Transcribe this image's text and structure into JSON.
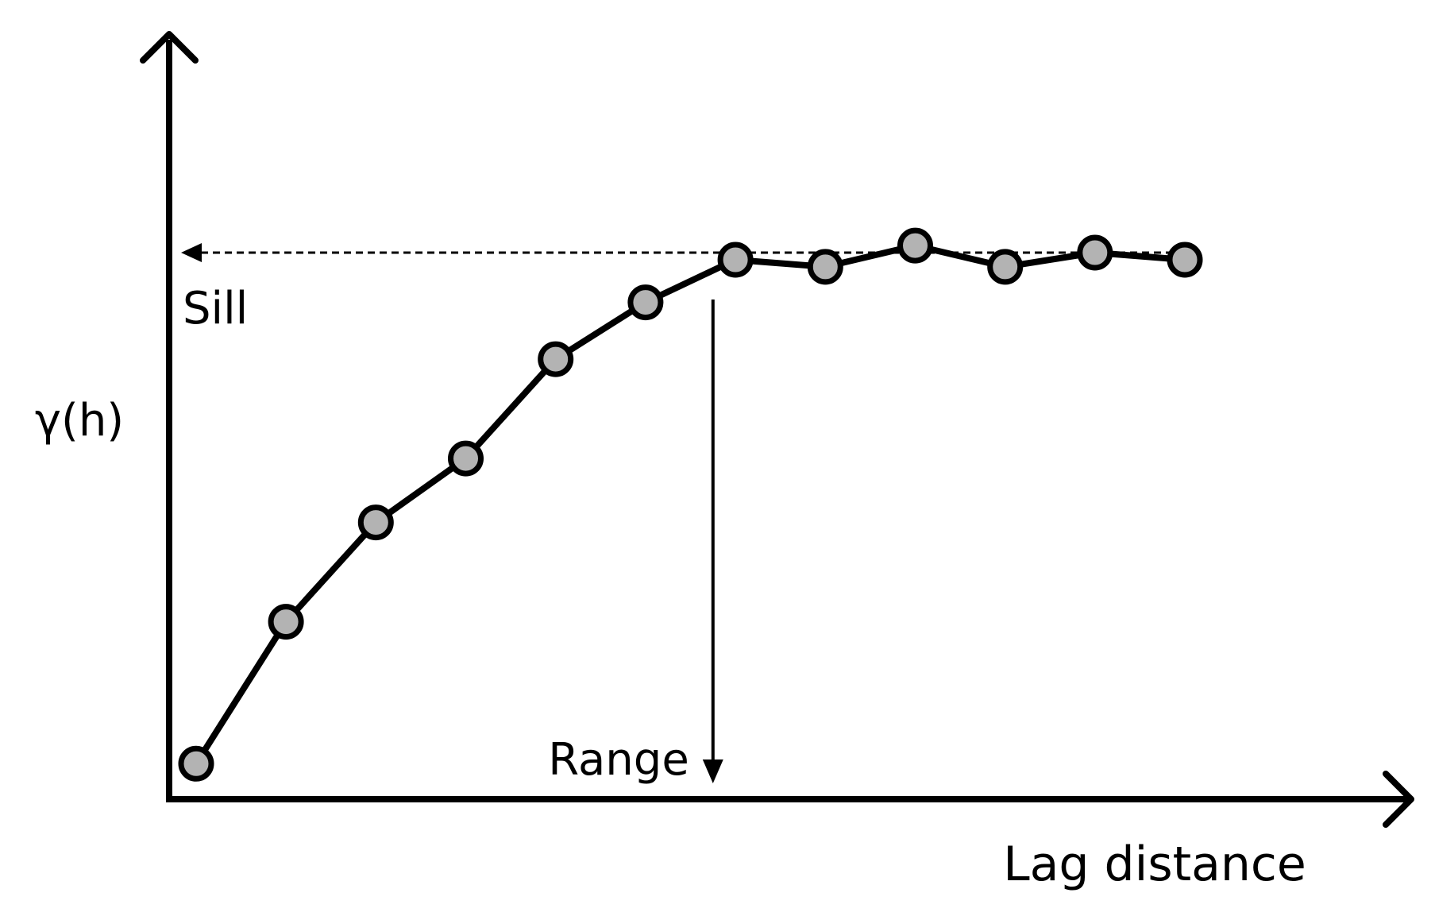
{
  "chart_data": {
    "type": "line",
    "title": "",
    "xlabel": "Lag distance",
    "ylabel": "γ(h)",
    "x": [
      1,
      2,
      3,
      4,
      5,
      6,
      7,
      8,
      9,
      10,
      11,
      12
    ],
    "series": [
      {
        "values": [
          0.05,
          0.25,
          0.39,
          0.48,
          0.62,
          0.7,
          0.76,
          0.75,
          0.78,
          0.75,
          0.77,
          0.76
        ]
      }
    ],
    "xlim": [
      0.7,
      14.5
    ],
    "ylim": [
      0,
      1.07
    ],
    "grid": false,
    "legend": "none",
    "annotations": {
      "sill": {
        "label": "Sill",
        "value": 0.77
      },
      "range": {
        "label": "Range",
        "value": 6.75
      }
    },
    "colors": {
      "line": "#000000",
      "marker_fill": "#b3b3b3",
      "marker_stroke": "#000000"
    }
  }
}
